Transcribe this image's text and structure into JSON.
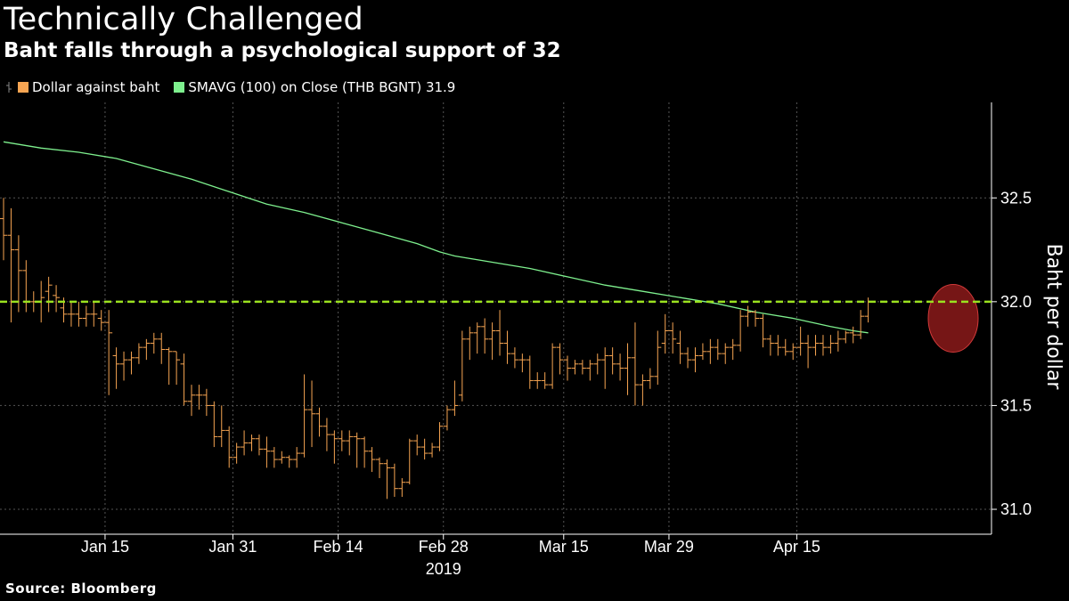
{
  "title": "Technically Challenged",
  "subtitle": "Baht falls through a psychological support of 32",
  "legend": [
    {
      "label": "Dollar against baht",
      "color": "#f7a552"
    },
    {
      "label": "SMAVG (100)  on Close (THB BGNT) 31.9",
      "color": "#7ef08e"
    }
  ],
  "source": "Source: Bloomberg",
  "colors": {
    "ohlc": "#f7a552",
    "sma": "#7ef08e",
    "support": "#9be21f",
    "highlight": "#8b1a1a",
    "grid": "#555555"
  },
  "chart_data": {
    "type": "line",
    "xlabel": "",
    "ylabel": "Baht per dollar",
    "ylim": [
      30.88,
      32.96
    ],
    "yticks": [
      31.0,
      31.5,
      32.0,
      32.5
    ],
    "xticks": [
      {
        "x": 13.5,
        "label": "Jan 15"
      },
      {
        "x": 30.5,
        "label": "Jan 31"
      },
      {
        "x": 44.5,
        "label": "Feb 14"
      },
      {
        "x": 58.5,
        "label": "Feb 28"
      },
      {
        "x": 74.5,
        "label": "Mar 15"
      },
      {
        "x": 88.5,
        "label": "Mar 29"
      },
      {
        "x": 105.5,
        "label": "Apr 15"
      }
    ],
    "year_label": "2019",
    "xlim": [
      0,
      116
    ],
    "support_level": 32.0,
    "series": [
      {
        "name": "Dollar against baht",
        "kind": "ohlc",
        "bars": [
          [
            0,
            32.4,
            32.5,
            32.2,
            32.32
          ],
          [
            1,
            32.32,
            32.45,
            31.9,
            32.25
          ],
          [
            2,
            32.25,
            32.32,
            31.95,
            32.15
          ],
          [
            3,
            32.15,
            32.2,
            31.95,
            32.0
          ],
          [
            4,
            32.0,
            32.05,
            31.95,
            32.0
          ],
          [
            5,
            32.0,
            32.1,
            31.9,
            32.02
          ],
          [
            6,
            32.05,
            32.12,
            31.95,
            32.08
          ],
          [
            7,
            32.03,
            32.08,
            31.95,
            32.02
          ],
          [
            8,
            31.97,
            32.02,
            31.9,
            31.94
          ],
          [
            9,
            31.94,
            32.0,
            31.88,
            31.94
          ],
          [
            10,
            31.94,
            32.0,
            31.88,
            31.92
          ],
          [
            11,
            31.92,
            31.98,
            31.88,
            31.94
          ],
          [
            12,
            31.94,
            32.0,
            31.88,
            31.94
          ],
          [
            13,
            31.92,
            31.96,
            31.86,
            31.9
          ],
          [
            14,
            31.9,
            31.96,
            31.55,
            31.85
          ],
          [
            15,
            31.74,
            31.78,
            31.58,
            31.7
          ],
          [
            16,
            31.7,
            31.76,
            31.62,
            31.72
          ],
          [
            17,
            31.72,
            31.76,
            31.65,
            31.73
          ],
          [
            18,
            31.73,
            31.8,
            31.7,
            31.78
          ],
          [
            19,
            31.78,
            31.82,
            31.72,
            31.8
          ],
          [
            20,
            31.8,
            31.85,
            31.75,
            31.82
          ],
          [
            21,
            31.82,
            31.85,
            31.7,
            31.77
          ],
          [
            22,
            31.77,
            31.78,
            31.6,
            31.76
          ],
          [
            23,
            31.76,
            31.76,
            31.6,
            31.72
          ],
          [
            24,
            31.7,
            31.75,
            31.5,
            31.52
          ],
          [
            25,
            31.52,
            31.6,
            31.45,
            31.55
          ],
          [
            26,
            31.55,
            31.6,
            31.48,
            31.55
          ],
          [
            27,
            31.55,
            31.58,
            31.45,
            31.5
          ],
          [
            28,
            31.5,
            31.52,
            31.3,
            31.35
          ],
          [
            29,
            31.35,
            31.5,
            31.3,
            31.38
          ],
          [
            30,
            31.38,
            31.4,
            31.2,
            31.25
          ],
          [
            31,
            31.25,
            31.32,
            31.22,
            31.3
          ],
          [
            32,
            31.3,
            31.38,
            31.26,
            31.32
          ],
          [
            33,
            31.32,
            31.36,
            31.28,
            31.34
          ],
          [
            34,
            31.34,
            31.36,
            31.26,
            31.29
          ],
          [
            35,
            31.29,
            31.35,
            31.2,
            31.28
          ],
          [
            36,
            31.28,
            31.3,
            31.2,
            31.24
          ],
          [
            37,
            31.24,
            31.28,
            31.22,
            31.25
          ],
          [
            38,
            31.25,
            31.26,
            31.2,
            31.24
          ],
          [
            39,
            31.24,
            31.3,
            31.2,
            31.27
          ],
          [
            40,
            31.27,
            31.65,
            31.25,
            31.48
          ],
          [
            41,
            31.48,
            31.62,
            31.3,
            31.46
          ],
          [
            42,
            31.46,
            31.49,
            31.35,
            31.4
          ],
          [
            43,
            31.4,
            31.44,
            31.28,
            31.36
          ],
          [
            44,
            31.36,
            31.38,
            31.22,
            31.34
          ],
          [
            45,
            31.34,
            31.38,
            31.28,
            31.33
          ],
          [
            46,
            31.33,
            31.38,
            31.26,
            31.35
          ],
          [
            47,
            31.35,
            31.37,
            31.2,
            31.34
          ],
          [
            48,
            31.34,
            31.35,
            31.2,
            31.28
          ],
          [
            49,
            31.28,
            31.3,
            31.18,
            31.24
          ],
          [
            50,
            31.24,
            31.25,
            31.15,
            31.22
          ],
          [
            51,
            31.22,
            31.24,
            31.05,
            31.2
          ],
          [
            52,
            31.2,
            31.22,
            31.06,
            31.1
          ],
          [
            53,
            31.1,
            31.15,
            31.06,
            31.13
          ],
          [
            54,
            31.13,
            31.34,
            31.12,
            31.33
          ],
          [
            55,
            31.33,
            31.36,
            31.26,
            31.3
          ],
          [
            56,
            31.3,
            31.34,
            31.24,
            31.27
          ],
          [
            57,
            31.27,
            31.32,
            31.25,
            31.3
          ],
          [
            58,
            31.3,
            31.42,
            31.28,
            31.4
          ],
          [
            59,
            31.4,
            31.5,
            31.38,
            31.48
          ],
          [
            60,
            31.48,
            31.62,
            31.45,
            31.5
          ],
          [
            61,
            31.55,
            31.86,
            31.52,
            31.82
          ],
          [
            62,
            31.82,
            31.88,
            31.72,
            31.85
          ],
          [
            63,
            31.85,
            31.9,
            31.75,
            31.88
          ],
          [
            64,
            31.88,
            31.92,
            31.75,
            31.82
          ],
          [
            65,
            31.82,
            31.9,
            31.72,
            31.86
          ],
          [
            66,
            31.86,
            31.96,
            31.74,
            31.8
          ],
          [
            67,
            31.8,
            31.86,
            31.7,
            31.75
          ],
          [
            68,
            31.75,
            31.78,
            31.68,
            31.72
          ],
          [
            69,
            31.72,
            31.75,
            31.66,
            31.72
          ],
          [
            70,
            31.72,
            31.74,
            31.58,
            31.62
          ],
          [
            71,
            31.62,
            31.66,
            31.58,
            31.62
          ],
          [
            72,
            31.62,
            31.66,
            31.58,
            31.6
          ],
          [
            73,
            31.6,
            31.8,
            31.58,
            31.78
          ],
          [
            74,
            31.78,
            31.8,
            31.65,
            31.72
          ],
          [
            75,
            31.72,
            31.74,
            31.62,
            31.68
          ],
          [
            76,
            31.68,
            31.72,
            31.65,
            31.7
          ],
          [
            77,
            31.7,
            31.72,
            31.65,
            31.68
          ],
          [
            78,
            31.68,
            31.72,
            31.62,
            31.7
          ],
          [
            79,
            31.7,
            31.75,
            31.65,
            31.72
          ],
          [
            80,
            31.72,
            31.78,
            31.58,
            31.74
          ],
          [
            81,
            31.74,
            31.78,
            31.65,
            31.7
          ],
          [
            82,
            31.7,
            31.75,
            31.62,
            31.68
          ],
          [
            83,
            31.68,
            31.8,
            31.55,
            31.73
          ],
          [
            84,
            31.73,
            31.9,
            31.5,
            31.6
          ],
          [
            85,
            31.6,
            31.65,
            31.5,
            31.62
          ],
          [
            86,
            31.62,
            31.68,
            31.58,
            31.64
          ],
          [
            87,
            31.64,
            31.86,
            31.6,
            31.78
          ],
          [
            88,
            31.8,
            31.94,
            31.75,
            31.86
          ],
          [
            89,
            31.86,
            31.9,
            31.75,
            31.82
          ],
          [
            90,
            31.8,
            31.86,
            31.7,
            31.75
          ],
          [
            91,
            31.75,
            31.78,
            31.68,
            31.72
          ],
          [
            92,
            31.72,
            31.78,
            31.66,
            31.74
          ],
          [
            93,
            31.74,
            31.8,
            31.72,
            31.76
          ],
          [
            94,
            31.76,
            31.82,
            31.7,
            31.78
          ],
          [
            95,
            31.78,
            31.82,
            31.72,
            31.75
          ],
          [
            96,
            31.75,
            31.8,
            31.7,
            31.78
          ],
          [
            97,
            31.78,
            31.82,
            31.72,
            31.79
          ],
          [
            98,
            31.79,
            31.96,
            31.76,
            31.93
          ],
          [
            99,
            31.93,
            31.98,
            31.88,
            31.95
          ],
          [
            100,
            31.95,
            31.96,
            31.88,
            31.92
          ],
          [
            101,
            31.92,
            31.94,
            31.78,
            31.82
          ],
          [
            102,
            31.82,
            31.84,
            31.74,
            31.8
          ],
          [
            103,
            31.8,
            31.84,
            31.74,
            31.78
          ],
          [
            104,
            31.78,
            31.82,
            31.74,
            31.76
          ],
          [
            105,
            31.76,
            31.8,
            31.72,
            31.78
          ],
          [
            106,
            31.78,
            31.88,
            31.74,
            31.8
          ],
          [
            107,
            31.8,
            31.84,
            31.68,
            31.78
          ],
          [
            108,
            31.78,
            31.84,
            31.74,
            31.8
          ],
          [
            109,
            31.8,
            31.84,
            31.74,
            31.78
          ],
          [
            110,
            31.78,
            31.84,
            31.75,
            31.8
          ],
          [
            111,
            31.8,
            31.86,
            31.76,
            31.82
          ],
          [
            112,
            31.82,
            31.86,
            31.8,
            31.85
          ],
          [
            113,
            31.85,
            31.88,
            31.8,
            31.84
          ],
          [
            114,
            31.84,
            31.96,
            31.82,
            31.93
          ],
          [
            115,
            31.93,
            32.02,
            31.9,
            32.0
          ]
        ]
      },
      {
        "name": "SMAVG (100)  on Close (THB BGNT) 31.9",
        "kind": "line",
        "points": [
          [
            0,
            32.77
          ],
          [
            5,
            32.74
          ],
          [
            10,
            32.72
          ],
          [
            15,
            32.69
          ],
          [
            20,
            32.64
          ],
          [
            25,
            32.59
          ],
          [
            30,
            32.53
          ],
          [
            35,
            32.47
          ],
          [
            40,
            32.43
          ],
          [
            45,
            32.38
          ],
          [
            50,
            32.33
          ],
          [
            55,
            32.28
          ],
          [
            58,
            32.24
          ],
          [
            60,
            32.22
          ],
          [
            65,
            32.19
          ],
          [
            70,
            32.16
          ],
          [
            75,
            32.12
          ],
          [
            80,
            32.08
          ],
          [
            85,
            32.05
          ],
          [
            90,
            32.02
          ],
          [
            95,
            31.99
          ],
          [
            100,
            31.95
          ],
          [
            105,
            31.92
          ],
          [
            110,
            31.88
          ],
          [
            113,
            31.86
          ],
          [
            115,
            31.85
          ]
        ]
      }
    ]
  }
}
